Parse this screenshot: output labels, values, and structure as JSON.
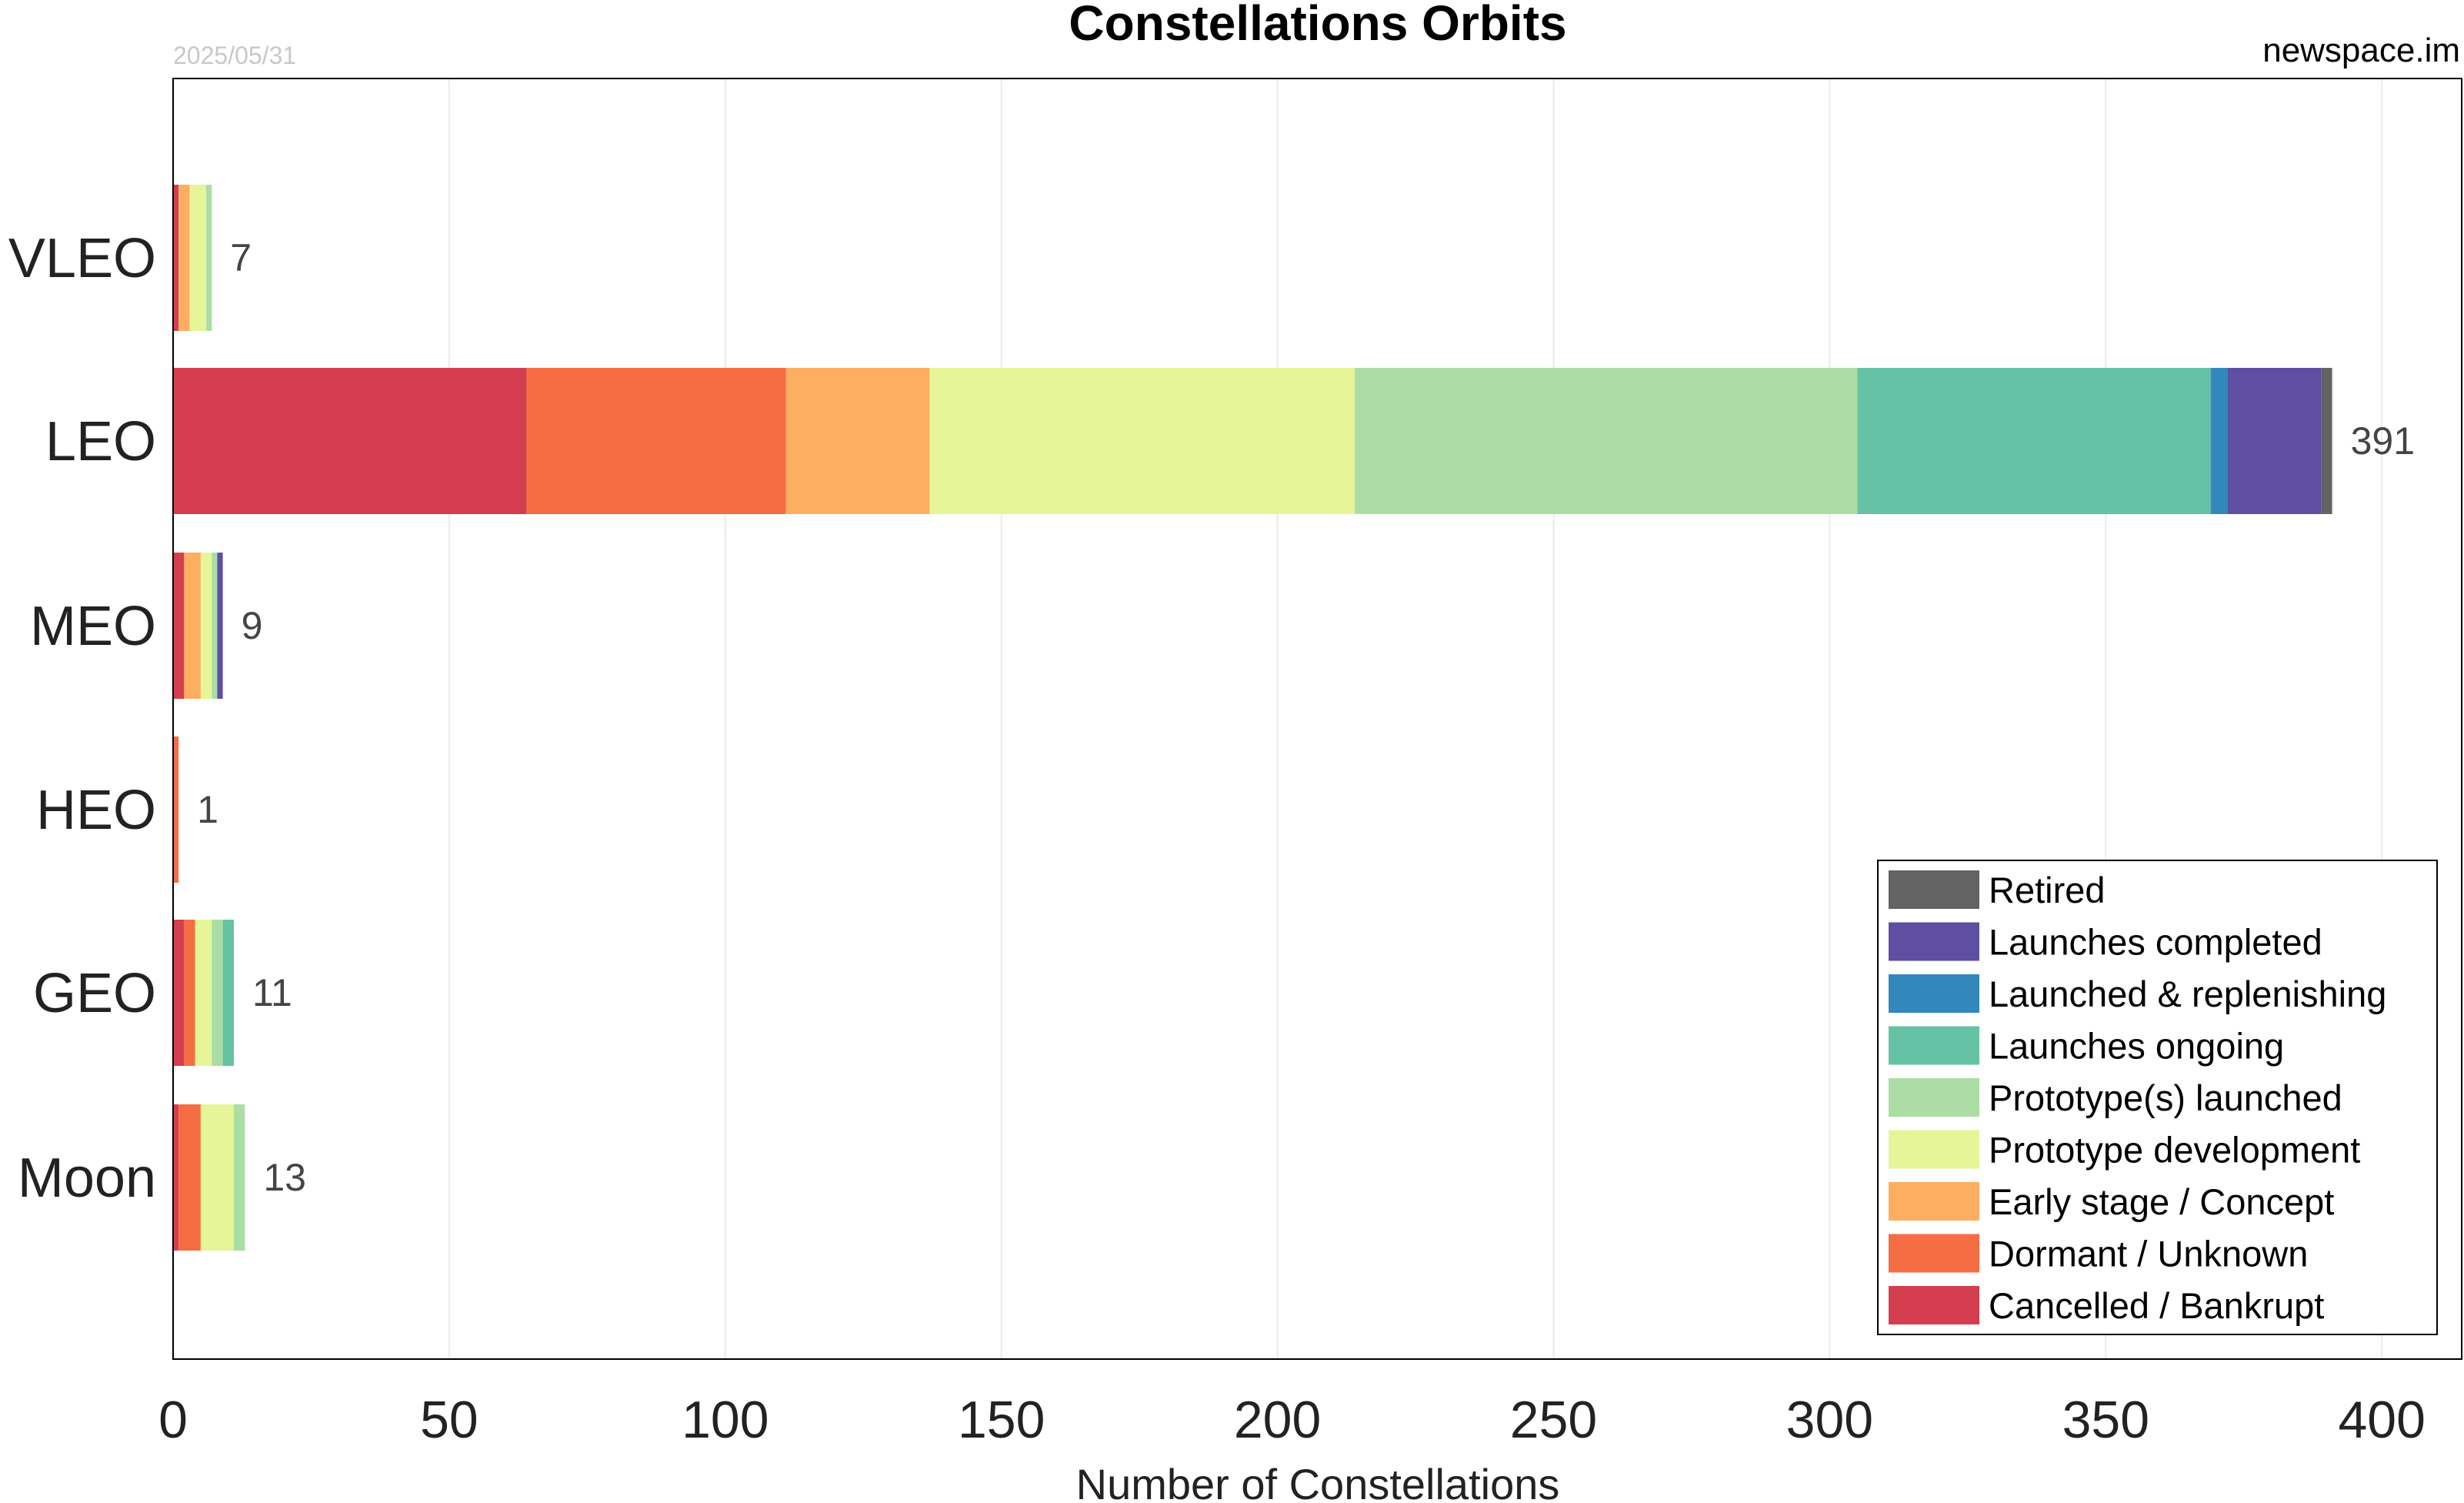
{
  "chart_data": {
    "type": "bar",
    "orientation": "horizontal",
    "stacked": true,
    "title": "Constellations Orbits",
    "date": "2025/05/31",
    "source": "newspace.im",
    "xlabel": "Number of Constellations",
    "ylabel": "",
    "xlim": [
      0,
      415
    ],
    "xticks": [
      "0",
      "50",
      "100",
      "150",
      "200",
      "250",
      "300",
      "350",
      "400"
    ],
    "grid": "vertical",
    "legend_position": "bottom-right",
    "categories": [
      "VLEO",
      "LEO",
      "MEO",
      "HEO",
      "GEO",
      "Moon"
    ],
    "totals": [
      "7",
      "391",
      "9",
      "1",
      "11",
      "13"
    ],
    "series": [
      {
        "name": "Cancelled / Bankrupt",
        "color": "#d53e4f",
        "values": [
          1,
          64,
          2,
          0,
          2,
          1
        ]
      },
      {
        "name": "Dormant / Unknown",
        "color": "#f46d43",
        "values": [
          0,
          47,
          0,
          1,
          2,
          4
        ]
      },
      {
        "name": "Early stage / Concept",
        "color": "#fdae61",
        "values": [
          2,
          26,
          3,
          0,
          0,
          0
        ]
      },
      {
        "name": "Prototype development",
        "color": "#e6f598",
        "values": [
          3,
          77,
          2,
          0,
          3,
          6
        ]
      },
      {
        "name": "Prototype(s) launched",
        "color": "#abdda4",
        "values": [
          1,
          91,
          1,
          0,
          2,
          2
        ]
      },
      {
        "name": "Launches ongoing",
        "color": "#66c2a5",
        "values": [
          0,
          64,
          0,
          0,
          2,
          0
        ]
      },
      {
        "name": "Launched & replenishing",
        "color": "#3288bd",
        "values": [
          0,
          3,
          0,
          0,
          0,
          0
        ]
      },
      {
        "name": "Launches completed",
        "color": "#5e4fa2",
        "values": [
          0,
          17,
          1,
          0,
          0,
          0
        ]
      },
      {
        "name": "Retired",
        "color": "#636363",
        "values": [
          0,
          2,
          0,
          0,
          0,
          0
        ]
      }
    ]
  }
}
